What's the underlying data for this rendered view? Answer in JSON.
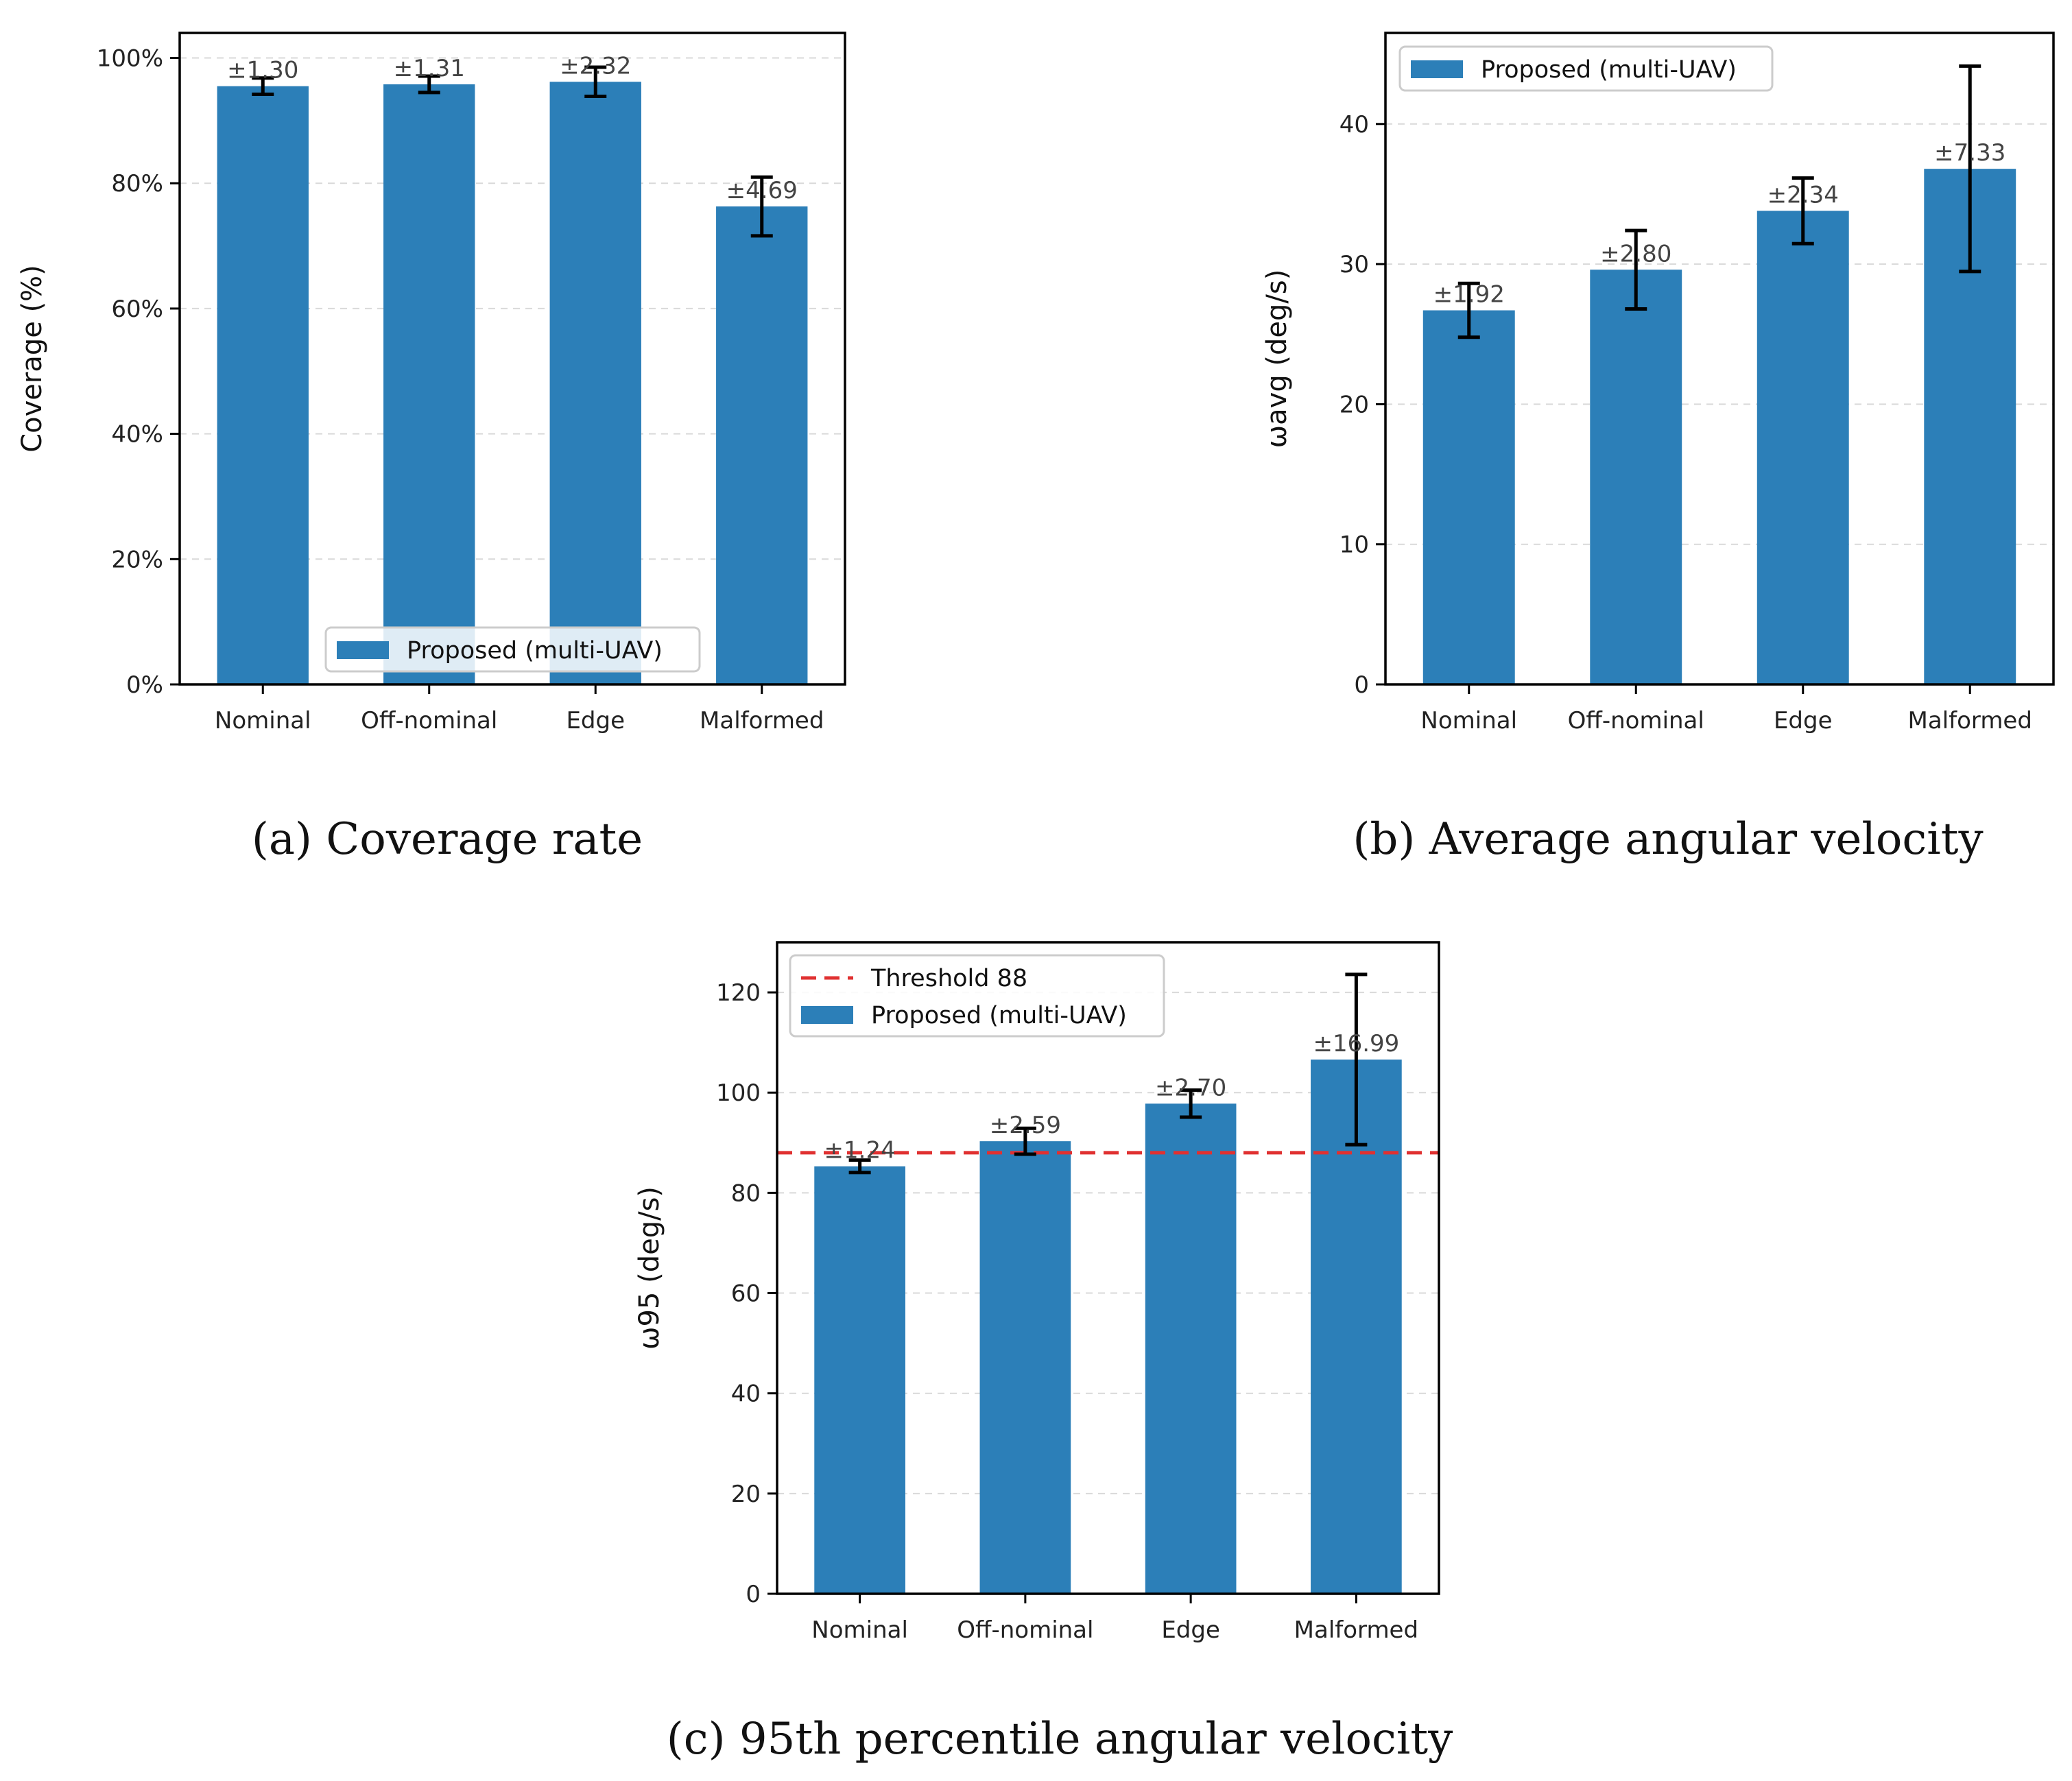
{
  "colors": {
    "bar": "#2c7fb8",
    "threshold": "#e03131",
    "error": "#000000",
    "grid": "#d9d9d9"
  },
  "chart_data": [
    {
      "type": "bar",
      "id": "a",
      "caption": "(a) Coverage rate",
      "ylabel": "Coverage (%)",
      "categories": [
        "Nominal",
        "Off-nominal",
        "Edge",
        "Malformed"
      ],
      "series": [
        {
          "name": "Proposed (multi-UAV)",
          "values": [
            95.5,
            95.8,
            96.2,
            76.3
          ]
        }
      ],
      "errors": [
        1.3,
        1.31,
        2.32,
        4.69
      ],
      "error_labels": [
        "±1.30",
        "±1.31",
        "±2.32",
        "±4.69"
      ],
      "ylim": [
        0,
        104
      ],
      "yticks": [
        0,
        20,
        40,
        60,
        80,
        100
      ],
      "ytick_labels": [
        "0%",
        "20%",
        "40%",
        "60%",
        "80%",
        "100%"
      ],
      "legend": {
        "placement": "bottom-center",
        "entries": [
          {
            "kind": "bar",
            "label": "Proposed (multi-UAV)"
          }
        ]
      },
      "grid": true
    },
    {
      "type": "bar",
      "id": "b",
      "caption": "(b) Average angular velocity",
      "ylabel": "ωavg (deg/s)",
      "categories": [
        "Nominal",
        "Off-nominal",
        "Edge",
        "Malformed"
      ],
      "series": [
        {
          "name": "Proposed (multi-UAV)",
          "values": [
            26.7,
            29.6,
            33.8,
            36.8
          ]
        }
      ],
      "errors": [
        1.92,
        2.8,
        2.34,
        7.33
      ],
      "error_labels": [
        "±1.92",
        "±2.80",
        "±2.34",
        "±7.33"
      ],
      "ylim": [
        0,
        46.5
      ],
      "yticks": [
        0,
        10,
        20,
        30,
        40
      ],
      "ytick_labels": [
        "0",
        "10",
        "20",
        "30",
        "40"
      ],
      "legend": {
        "placement": "top-left",
        "entries": [
          {
            "kind": "bar",
            "label": "Proposed (multi-UAV)"
          }
        ]
      },
      "grid": true
    },
    {
      "type": "bar",
      "id": "c",
      "caption": "(c) 95th percentile angular velocity",
      "ylabel": "ω95 (deg/s)",
      "categories": [
        "Nominal",
        "Off-nominal",
        "Edge",
        "Malformed"
      ],
      "series": [
        {
          "name": "Proposed (multi-UAV)",
          "values": [
            85.3,
            90.3,
            97.8,
            106.6
          ]
        }
      ],
      "errors": [
        1.24,
        2.59,
        2.7,
        16.99
      ],
      "error_labels": [
        "±1.24",
        "±2.59",
        "±2.70",
        "±16.99"
      ],
      "threshold": 88,
      "ylim": [
        0,
        130
      ],
      "yticks": [
        0,
        20,
        40,
        60,
        80,
        100,
        120
      ],
      "ytick_labels": [
        "0",
        "20",
        "40",
        "60",
        "80",
        "100",
        "120"
      ],
      "legend": {
        "placement": "top-left",
        "entries": [
          {
            "kind": "line",
            "label": "Threshold 88"
          },
          {
            "kind": "bar",
            "label": "Proposed (multi-UAV)"
          }
        ]
      },
      "grid": true
    }
  ]
}
